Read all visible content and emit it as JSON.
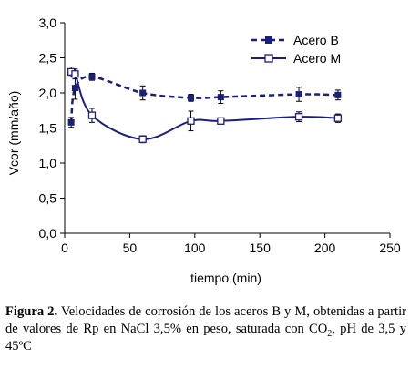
{
  "chart_data": {
    "type": "line",
    "xlabel": "tiempo (min)",
    "ylabel": "Vcor (mm/año)",
    "xlim": [
      0,
      250
    ],
    "ylim": [
      0,
      3
    ],
    "xticks": [
      "0",
      "50",
      "100",
      "150",
      "200",
      "250"
    ],
    "yticks": [
      "0,0",
      "0,5",
      "1,0",
      "1,5",
      "2,0",
      "2,5",
      "3,0"
    ],
    "grid": false,
    "legend_position": "top-right",
    "series": [
      {
        "name": "Acero B",
        "line_style": "dashed",
        "marker": "filled-square",
        "color": "#1a1f7a",
        "x": [
          5,
          8,
          21,
          60,
          97,
          120,
          180,
          210
        ],
        "y": [
          1.58,
          2.07,
          2.23,
          2.0,
          1.93,
          1.94,
          1.98,
          1.97
        ],
        "err": [
          0.07,
          0.16,
          0.05,
          0.1,
          0.05,
          0.09,
          0.1,
          0.07
        ]
      },
      {
        "name": "Acero M",
        "line_style": "solid",
        "marker": "open-square",
        "color": "#1a1f7a",
        "x": [
          5,
          8,
          21,
          60,
          97,
          120,
          180,
          210
        ],
        "y": [
          2.3,
          2.27,
          1.68,
          1.34,
          1.6,
          1.6,
          1.66,
          1.64
        ],
        "err": [
          0.07,
          0.07,
          0.1,
          0.05,
          0.14,
          0.04,
          0.07,
          0.06
        ]
      }
    ]
  },
  "caption": {
    "label": "Figura 2.",
    "text_part1": " Velocidades de corrosión de los aceros B y M, obtenidas a partir de valores de Rp en NaCl 3,5% en peso, saturada con CO",
    "subscript": "2",
    "text_part2": ", pH de 3,5 y 45ºC"
  }
}
